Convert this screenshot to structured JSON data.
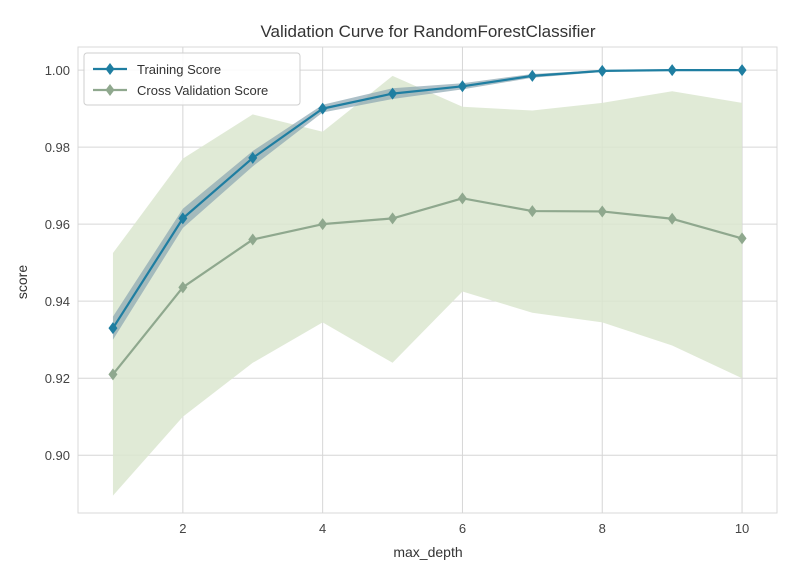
{
  "chart_data": {
    "type": "line",
    "title": "Validation Curve for RandomForestClassifier",
    "xlabel": "max_depth",
    "ylabel": "score",
    "x": [
      1,
      2,
      3,
      4,
      5,
      6,
      7,
      8,
      9,
      10
    ],
    "xlim": [
      0.5,
      10.5
    ],
    "ylim": [
      0.885,
      1.006
    ],
    "xticks": [
      2,
      4,
      6,
      8,
      10
    ],
    "yticks": [
      0.9,
      0.92,
      0.94,
      0.96,
      0.98,
      1.0
    ],
    "ytick_labels": [
      "0.90",
      "0.92",
      "0.94",
      "0.96",
      "0.98",
      "1.00"
    ],
    "grid": true,
    "legend_position": "top-left",
    "series": [
      {
        "name": "Training Score",
        "color": "#1f7ea1",
        "band_color": "#8aa5b0",
        "values": [
          0.933,
          0.9615,
          0.9772,
          0.99,
          0.9939,
          0.9958,
          0.9985,
          0.9998,
          1.0,
          1.0
        ],
        "lower": [
          0.93,
          0.959,
          0.975,
          0.989,
          0.9925,
          0.995,
          0.998,
          0.9995,
          1.0,
          1.0
        ],
        "upper": [
          0.936,
          0.964,
          0.979,
          0.991,
          0.9953,
          0.9966,
          0.999,
          1.0,
          1.0,
          1.0
        ]
      },
      {
        "name": "Cross Validation Score",
        "color": "#8fa88e",
        "band_color": "#dbe6cf",
        "values": [
          0.921,
          0.9436,
          0.956,
          0.96,
          0.9615,
          0.9667,
          0.9634,
          0.9633,
          0.9614,
          0.9563
        ],
        "lower": [
          0.8895,
          0.91,
          0.924,
          0.9345,
          0.924,
          0.9425,
          0.937,
          0.9345,
          0.9285,
          0.92
        ],
        "upper": [
          0.9525,
          0.977,
          0.9885,
          0.984,
          0.9985,
          0.9905,
          0.9895,
          0.9915,
          0.9945,
          0.9915
        ]
      }
    ]
  }
}
